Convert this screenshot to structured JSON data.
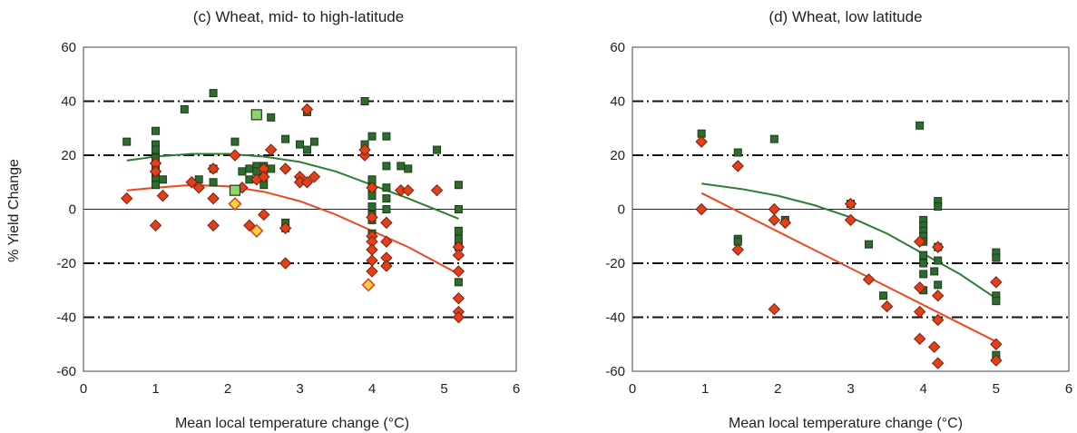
{
  "colors": {
    "irrigated": "#2e6b2e",
    "irrigated_edge": "#173d17",
    "rainfed": "#e2401c",
    "rainfed_edge": "#7a1e08",
    "highlight_square": "#8fd36a",
    "highlight_diamond": "#ffd23f",
    "fit_green": "#2e7d32",
    "fit_red": "#f0461e"
  },
  "chart_data": [
    {
      "type": "scatter",
      "title": "(c) Wheat, mid- to high-latitude",
      "xlabel": "Mean local temperature change (°C)",
      "ylabel": "% Yield Change",
      "xlim": [
        0,
        6
      ],
      "ylim": [
        -60,
        60
      ],
      "xticks": [
        "0",
        "1",
        "2",
        "3",
        "4",
        "5",
        "6"
      ],
      "yticks": [
        "60",
        "40",
        "20",
        "0",
        "-20",
        "-40",
        "-60"
      ],
      "reference_lines": [
        40,
        20,
        -20,
        -40
      ],
      "series": [
        {
          "marker": "square",
          "points": [
            [
              0.6,
              25
            ],
            [
              1,
              29
            ],
            [
              1,
              24
            ],
            [
              1,
              22
            ],
            [
              1,
              19
            ],
            [
              1,
              16
            ],
            [
              1,
              13
            ],
            [
              1,
              11
            ],
            [
              1,
              9
            ],
            [
              1.1,
              11
            ],
            [
              1.4,
              37
            ],
            [
              1.6,
              11
            ],
            [
              1.8,
              43
            ],
            [
              1.8,
              15
            ],
            [
              1.8,
              10
            ],
            [
              2.1,
              25
            ],
            [
              2.2,
              14
            ],
            [
              2.3,
              15
            ],
            [
              2.3,
              11
            ],
            [
              2.4,
              16
            ],
            [
              2.4,
              14
            ],
            [
              2.5,
              16
            ],
            [
              2.5,
              12
            ],
            [
              2.5,
              9
            ],
            [
              2.6,
              34
            ],
            [
              2.6,
              15
            ],
            [
              2.8,
              26
            ],
            [
              2.8,
              -5
            ],
            [
              2.8,
              -7
            ],
            [
              3,
              24
            ],
            [
              3.1,
              36
            ],
            [
              3.1,
              22
            ],
            [
              3.2,
              25
            ],
            [
              3.9,
              40
            ],
            [
              3.9,
              24
            ],
            [
              4,
              27
            ],
            [
              4,
              11
            ],
            [
              4,
              8
            ],
            [
              4,
              5
            ],
            [
              4,
              1
            ],
            [
              4,
              -2
            ],
            [
              4,
              -4
            ],
            [
              4,
              -9
            ],
            [
              4.2,
              27
            ],
            [
              4.2,
              16
            ],
            [
              4.2,
              8
            ],
            [
              4.2,
              4
            ],
            [
              4.2,
              0
            ],
            [
              4.4,
              16
            ],
            [
              4.5,
              15
            ],
            [
              4.9,
              22
            ],
            [
              5.2,
              9
            ],
            [
              5.2,
              0
            ],
            [
              5.2,
              -8
            ],
            [
              5.2,
              -11
            ],
            [
              5.2,
              -14
            ],
            [
              5.2,
              -27
            ]
          ]
        },
        {
          "marker": "diamond",
          "points": [
            [
              0.6,
              4
            ],
            [
              1,
              17
            ],
            [
              1,
              14
            ],
            [
              1,
              -6
            ],
            [
              1.1,
              5
            ],
            [
              1.5,
              10
            ],
            [
              1.6,
              8
            ],
            [
              1.8,
              15
            ],
            [
              1.8,
              4
            ],
            [
              1.8,
              -6
            ],
            [
              2.1,
              20
            ],
            [
              2.2,
              8
            ],
            [
              2.3,
              -6
            ],
            [
              2.4,
              11
            ],
            [
              2.5,
              15
            ],
            [
              2.5,
              12
            ],
            [
              2.5,
              -2
            ],
            [
              2.6,
              22
            ],
            [
              2.8,
              15
            ],
            [
              2.8,
              -7
            ],
            [
              2.8,
              -20
            ],
            [
              3,
              12
            ],
            [
              3,
              10
            ],
            [
              3.1,
              37
            ],
            [
              3.1,
              10
            ],
            [
              3.2,
              12
            ],
            [
              3.9,
              20
            ],
            [
              3.9,
              22
            ],
            [
              4,
              8
            ],
            [
              4,
              -3
            ],
            [
              4,
              -10
            ],
            [
              4,
              -12
            ],
            [
              4,
              -15
            ],
            [
              4,
              -19
            ],
            [
              4,
              -23
            ],
            [
              4.2,
              -5
            ],
            [
              4.2,
              -12
            ],
            [
              4.2,
              -18
            ],
            [
              4.2,
              -21
            ],
            [
              4.4,
              7
            ],
            [
              4.5,
              7
            ],
            [
              4.9,
              7
            ],
            [
              5.2,
              -14
            ],
            [
              5.2,
              -17
            ],
            [
              5.2,
              -23
            ],
            [
              5.2,
              -33
            ],
            [
              5.2,
              -38
            ],
            [
              5.2,
              -40
            ]
          ]
        },
        {
          "marker": "square-highlight",
          "points": [
            [
              2.4,
              35
            ],
            [
              2.1,
              7
            ]
          ]
        },
        {
          "marker": "diamond-highlight",
          "points": [
            [
              2.1,
              2
            ],
            [
              2.4,
              -8
            ],
            [
              3.95,
              -28
            ]
          ]
        },
        {
          "marker": "line-green",
          "points": [
            [
              0.6,
              18
            ],
            [
              1,
              19.5
            ],
            [
              1.5,
              20.5
            ],
            [
              2,
              20.5
            ],
            [
              2.5,
              19.5
            ],
            [
              3,
              17.5
            ],
            [
              3.5,
              14
            ],
            [
              4,
              9
            ],
            [
              4.5,
              4
            ],
            [
              5.2,
              -3.5
            ]
          ]
        },
        {
          "marker": "line-red",
          "points": [
            [
              0.6,
              7
            ],
            [
              1,
              8
            ],
            [
              1.5,
              9
            ],
            [
              2,
              8.5
            ],
            [
              2.5,
              6.5
            ],
            [
              3,
              3
            ],
            [
              3.5,
              -2
            ],
            [
              4,
              -8
            ],
            [
              4.5,
              -14
            ],
            [
              5.2,
              -24
            ]
          ]
        }
      ]
    },
    {
      "type": "scatter",
      "title": "(d) Wheat, low latitude",
      "xlabel": "Mean local temperature change (°C)",
      "ylabel": "",
      "xlim": [
        0,
        6
      ],
      "ylim": [
        -60,
        60
      ],
      "xticks": [
        "0",
        "1",
        "2",
        "3",
        "4",
        "5",
        "6"
      ],
      "yticks": [
        "60",
        "40",
        "20",
        "0",
        "-20",
        "-40",
        "-60"
      ],
      "reference_lines": [
        40,
        20,
        -20,
        -40
      ],
      "series": [
        {
          "marker": "square",
          "points": [
            [
              0.95,
              28
            ],
            [
              1.45,
              21
            ],
            [
              1.45,
              -11
            ],
            [
              1.45,
              -12
            ],
            [
              1.95,
              26
            ],
            [
              2.1,
              -4
            ],
            [
              3,
              2
            ],
            [
              3.25,
              -13
            ],
            [
              3.45,
              -32
            ],
            [
              3.95,
              31
            ],
            [
              4,
              -4
            ],
            [
              4,
              -6
            ],
            [
              4,
              -8
            ],
            [
              4,
              -10
            ],
            [
              4,
              -12
            ],
            [
              4,
              -17
            ],
            [
              4,
              -20
            ],
            [
              4,
              -24
            ],
            [
              4,
              -30
            ],
            [
              4.15,
              -23
            ],
            [
              4.2,
              3
            ],
            [
              4.2,
              1
            ],
            [
              4.2,
              -14
            ],
            [
              4.2,
              -19
            ],
            [
              4.2,
              -28
            ],
            [
              5,
              -16
            ],
            [
              5,
              -18
            ],
            [
              5,
              -32
            ],
            [
              5,
              -34
            ],
            [
              5,
              -54
            ]
          ]
        },
        {
          "marker": "diamond",
          "points": [
            [
              0.95,
              25
            ],
            [
              0.95,
              0
            ],
            [
              1.45,
              16
            ],
            [
              1.45,
              -15
            ],
            [
              1.95,
              0
            ],
            [
              1.95,
              -4
            ],
            [
              1.95,
              -37
            ],
            [
              2.1,
              -5
            ],
            [
              3,
              2
            ],
            [
              3,
              -4
            ],
            [
              3.25,
              -26
            ],
            [
              3.5,
              -36
            ],
            [
              3.95,
              -12
            ],
            [
              3.95,
              -29
            ],
            [
              3.95,
              -38
            ],
            [
              3.95,
              -48
            ],
            [
              4.15,
              -51
            ],
            [
              4.2,
              -14
            ],
            [
              4.2,
              -32
            ],
            [
              4.2,
              -41
            ],
            [
              4.2,
              -57
            ],
            [
              5,
              -27
            ],
            [
              5,
              -50
            ],
            [
              5,
              -56
            ]
          ]
        },
        {
          "marker": "line-green",
          "points": [
            [
              0.95,
              9.5
            ],
            [
              1.5,
              7.5
            ],
            [
              2,
              5
            ],
            [
              2.5,
              1.5
            ],
            [
              3,
              -3
            ],
            [
              3.5,
              -9
            ],
            [
              4,
              -16.5
            ],
            [
              4.5,
              -24
            ],
            [
              5,
              -33
            ]
          ]
        },
        {
          "marker": "line-red",
          "points": [
            [
              0.95,
              6
            ],
            [
              5,
              -49
            ]
          ]
        }
      ]
    }
  ]
}
